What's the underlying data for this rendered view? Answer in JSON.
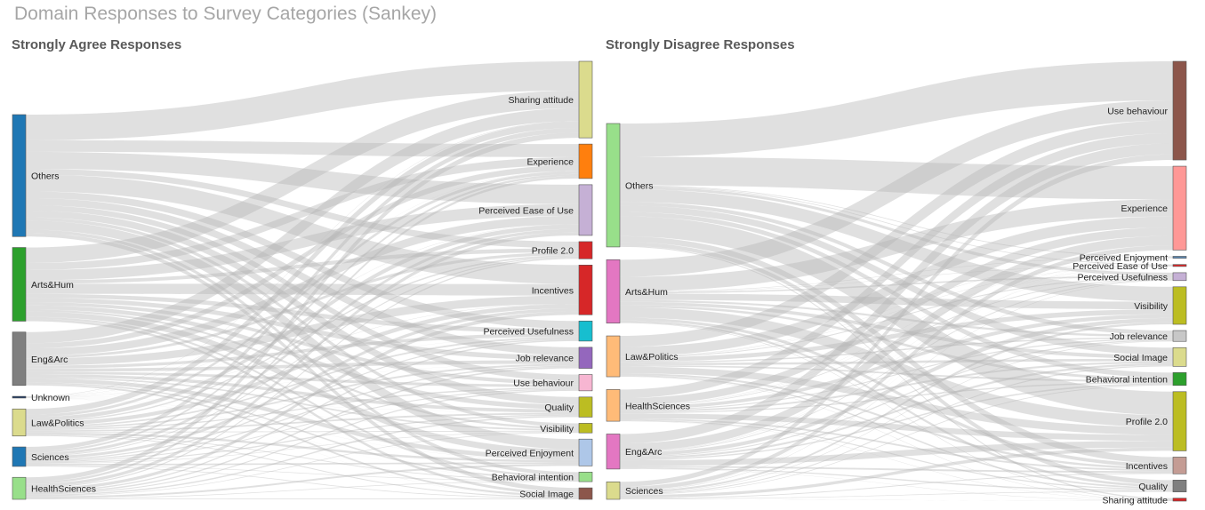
{
  "title": "Domain Responses to Survey Categories (Sankey)",
  "chart_data": [
    {
      "type": "sankey",
      "title": "Strongly Agree Responses",
      "sources": [
        {
          "name": "Others",
          "value": 144,
          "color": "#1f77b4"
        },
        {
          "name": "Arts&Hum",
          "value": 87,
          "color": "#2ca02c"
        },
        {
          "name": "Eng&Arc",
          "value": 63,
          "color": "#7f7f7f"
        },
        {
          "name": "Unknown",
          "value": 2,
          "color": "#1f3a64"
        },
        {
          "name": "Law&Politics",
          "value": 32,
          "color": "#dbdb8d"
        },
        {
          "name": "Sciences",
          "value": 23,
          "color": "#1f77b4"
        },
        {
          "name": "HealthSciences",
          "value": 26,
          "color": "#98df8a"
        }
      ],
      "targets": [
        {
          "name": "Sharing attitude",
          "value": 80,
          "color": "#dbdb8d"
        },
        {
          "name": "Experience",
          "value": 36,
          "color": "#ff7f0e"
        },
        {
          "name": "Perceived Ease of Use",
          "value": 53,
          "color": "#c5b0d5"
        },
        {
          "name": "Profile 2.0",
          "value": 18,
          "color": "#d62728"
        },
        {
          "name": "Incentives",
          "value": 52,
          "color": "#d62728"
        },
        {
          "name": "Perceived Usefulness",
          "value": 21,
          "color": "#17becf"
        },
        {
          "name": "Job relevance",
          "value": 22,
          "color": "#9467bd"
        },
        {
          "name": "Use behaviour",
          "value": 17,
          "color": "#f7b6d2"
        },
        {
          "name": "Quality",
          "value": 21,
          "color": "#bcbd22"
        },
        {
          "name": "Visibility",
          "value": 10,
          "color": "#bcbd22"
        },
        {
          "name": "Perceived Enjoyment",
          "value": 28,
          "color": "#aec7e8"
        },
        {
          "name": "Behavioral intention",
          "value": 10,
          "color": "#98df8a"
        },
        {
          "name": "Social Image",
          "value": 12,
          "color": "#8c564b"
        }
      ]
    },
    {
      "type": "sankey",
      "title": "Strongly Disagree Responses",
      "sources": [
        {
          "name": "Others",
          "value": 148,
          "color": "#98df8a"
        },
        {
          "name": "Arts&Hum",
          "value": 76,
          "color": "#e377c2"
        },
        {
          "name": "Law&Politics",
          "value": 49,
          "color": "#ffbb78"
        },
        {
          "name": "HealthSciences",
          "value": 38,
          "color": "#ffbb78"
        },
        {
          "name": "Eng&Arc",
          "value": 42,
          "color": "#e377c2"
        },
        {
          "name": "Sciences",
          "value": 21,
          "color": "#dbdb8d"
        }
      ],
      "targets": [
        {
          "name": "Use behaviour",
          "value": 100,
          "color": "#8c564b"
        },
        {
          "name": "Experience",
          "value": 85,
          "color": "#ff9896"
        },
        {
          "name": "Perceived Enjoyment",
          "value": 2,
          "color": "#5f8bb3"
        },
        {
          "name": "Perceived Ease of Use",
          "value": 2,
          "color": "#d62728"
        },
        {
          "name": "Perceived Usefulness",
          "value": 8,
          "color": "#c5b0d5"
        },
        {
          "name": "Visibility",
          "value": 38,
          "color": "#bcbd22"
        },
        {
          "name": "Job relevance",
          "value": 11,
          "color": "#c7c7c7"
        },
        {
          "name": "Social Image",
          "value": 19,
          "color": "#dbdb8d"
        },
        {
          "name": "Behavioral intention",
          "value": 13,
          "color": "#2ca02c"
        },
        {
          "name": "Profile 2.0",
          "value": 60,
          "color": "#bcbd22"
        },
        {
          "name": "Incentives",
          "value": 17,
          "color": "#c49c94"
        },
        {
          "name": "Quality",
          "value": 12,
          "color": "#7f7f7f"
        },
        {
          "name": "Sharing attitude",
          "value": 3,
          "color": "#d62728"
        }
      ]
    }
  ]
}
